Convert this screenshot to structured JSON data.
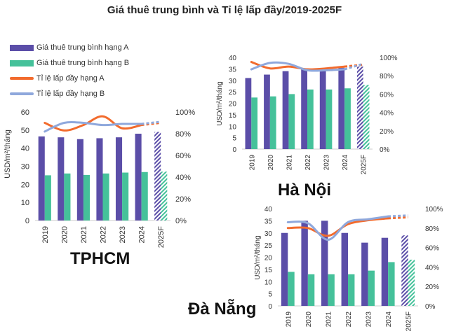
{
  "title": "Giá thuê trung bình và Tỉ lệ lấp đầy/2019-2025F",
  "legend": [
    {
      "label": "Giá thuê trung bình hạng A",
      "kind": "bar",
      "color": "#5b4ea8"
    },
    {
      "label": "Giá thuê trung bình hạng B",
      "kind": "bar",
      "color": "#45c19a"
    },
    {
      "label": "Tỉ lệ lấp đầy hạng A",
      "kind": "line",
      "color": "#f26b2d"
    },
    {
      "label": "Tỉ lệ lấp đầy hạng B",
      "kind": "line",
      "color": "#8fa8dc"
    }
  ],
  "colors": {
    "barA": "#5b4ea8",
    "barB": "#45c19a",
    "lineA": "#f26b2d",
    "lineB": "#8fa8dc"
  },
  "chart_data": [
    {
      "type": "bar",
      "city_label": "TPHCM",
      "categories": [
        "2019",
        "2020",
        "2021",
        "2022",
        "2023",
        "2024",
        "2025F"
      ],
      "ylabel": "USD/m²/tháng",
      "ylim": [
        0,
        60
      ],
      "yticks": [
        "0",
        "10",
        "20",
        "30",
        "40",
        "50",
        "60"
      ],
      "y2lim": [
        0,
        100
      ],
      "y2ticks": [
        "0%",
        "20%",
        "40%",
        "60%",
        "80%",
        "100%"
      ],
      "series": [
        {
          "name": "Giá thuê trung bình hạng A",
          "values": [
            46.5,
            46,
            45,
            45.5,
            46,
            48,
            49
          ]
        },
        {
          "name": "Giá thuê trung bình hạng B",
          "values": [
            25,
            26,
            25.2,
            26,
            26.5,
            26.8,
            27
          ]
        },
        {
          "name": "Tỉ lệ lấp đầy hạng A",
          "axis": "right",
          "values": [
            90,
            83,
            88,
            96,
            85,
            88,
            90
          ]
        },
        {
          "name": "Tỉ lệ lấp đầy hạng B",
          "axis": "right",
          "values": [
            82,
            90,
            90,
            88,
            89,
            89,
            91
          ]
        }
      ],
      "forecast_last": true
    },
    {
      "type": "bar",
      "city_label": "Hà Nội",
      "categories": [
        "2019",
        "2020",
        "2021",
        "2022",
        "2023",
        "2024",
        "2025F"
      ],
      "ylabel": "USD/m²/tháng",
      "ylim": [
        0,
        40
      ],
      "yticks": [
        "0",
        "5",
        "10",
        "15",
        "20",
        "25",
        "30",
        "35",
        "40"
      ],
      "y2lim": [
        0,
        100
      ],
      "y2ticks": [
        "0%",
        "20%",
        "40%",
        "60%",
        "80%",
        "100%"
      ],
      "series": [
        {
          "name": "Giá thuê trung bình hạng A",
          "values": [
            31,
            32.5,
            34,
            35,
            35,
            35.5,
            36
          ]
        },
        {
          "name": "Giá thuê trung bình hạng B",
          "values": [
            22.5,
            23,
            24,
            26,
            26,
            26.5,
            28
          ]
        },
        {
          "name": "Tỉ lệ lấp đầy hạng A",
          "axis": "right",
          "values": [
            95,
            88,
            90,
            87,
            88,
            90,
            92
          ]
        },
        {
          "name": "Tỉ lệ lấp đầy hạng B",
          "axis": "right",
          "values": [
            87,
            94,
            93,
            86,
            86,
            87,
            93
          ]
        }
      ],
      "forecast_last": true
    },
    {
      "type": "bar",
      "city_label": "Đà Nẵng",
      "categories": [
        "2019",
        "2020",
        "2021",
        "2022",
        "2023",
        "2024",
        "2025F"
      ],
      "ylabel": "USD/m²/tháng",
      "ylim": [
        0,
        40
      ],
      "yticks": [
        "0",
        "5",
        "10",
        "15",
        "20",
        "25",
        "30",
        "35",
        "40"
      ],
      "y2lim": [
        0,
        100
      ],
      "y2ticks": [
        "0%",
        "20%",
        "40%",
        "60%",
        "80%",
        "100%"
      ],
      "series": [
        {
          "name": "Giá thuê trung bình hạng A",
          "values": [
            30,
            35,
            35,
            30,
            26,
            28,
            29
          ]
        },
        {
          "name": "Giá thuê trung bình hạng B",
          "values": [
            14,
            13,
            13,
            13,
            14.5,
            18,
            19
          ]
        },
        {
          "name": "Tỉ lệ lấp đầy hạng A",
          "axis": "right",
          "values": [
            80,
            80,
            72,
            84,
            88,
            90,
            91
          ]
        },
        {
          "name": "Tỉ lệ lấp đầy hạng B",
          "axis": "right",
          "values": [
            86,
            85,
            68,
            86,
            89,
            92,
            93
          ]
        }
      ],
      "forecast_last": true
    }
  ]
}
